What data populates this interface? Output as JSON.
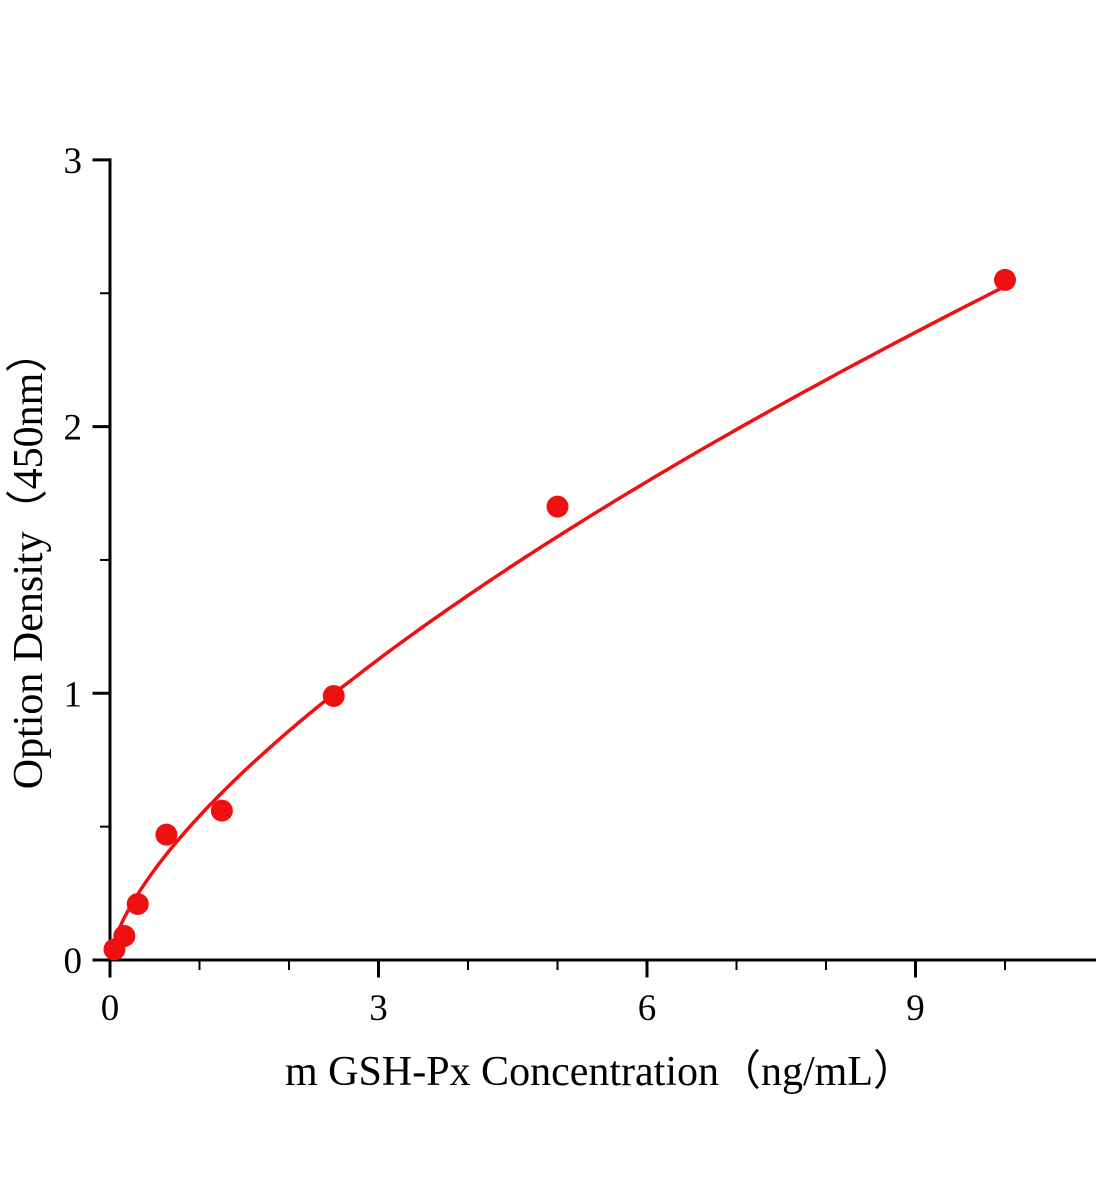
{
  "chart_data": {
    "type": "scatter",
    "title": "",
    "xlabel": "m GSH-Px Concentration（ng/mL）",
    "ylabel": "Option Density（450nm）",
    "xlim": [
      0,
      11
    ],
    "ylim": [
      0,
      3
    ],
    "x_major_ticks": [
      0,
      3,
      6,
      9
    ],
    "x_minor_ticks": [
      1,
      2,
      4,
      5,
      7,
      8,
      10
    ],
    "y_major_ticks": [
      0,
      1,
      2,
      3
    ],
    "y_minor_ticks": [
      0.5,
      1.5,
      2.5
    ],
    "grid": false,
    "legend": null,
    "points": [
      {
        "x": 0.05,
        "y": 0.04
      },
      {
        "x": 0.16,
        "y": 0.09
      },
      {
        "x": 0.31,
        "y": 0.21
      },
      {
        "x": 0.63,
        "y": 0.47
      },
      {
        "x": 1.25,
        "y": 0.56
      },
      {
        "x": 2.5,
        "y": 0.99
      },
      {
        "x": 5.0,
        "y": 1.7
      },
      {
        "x": 10.0,
        "y": 2.55
      }
    ],
    "fit": {
      "model": "power",
      "equation": "y = 0.54 * x^0.67",
      "a": 0.54,
      "b": 0.67,
      "x_range": [
        0.02,
        10.05
      ]
    },
    "marker_color": "#ee1111",
    "line_color": "#ee1111",
    "axis_color": "#000000"
  }
}
